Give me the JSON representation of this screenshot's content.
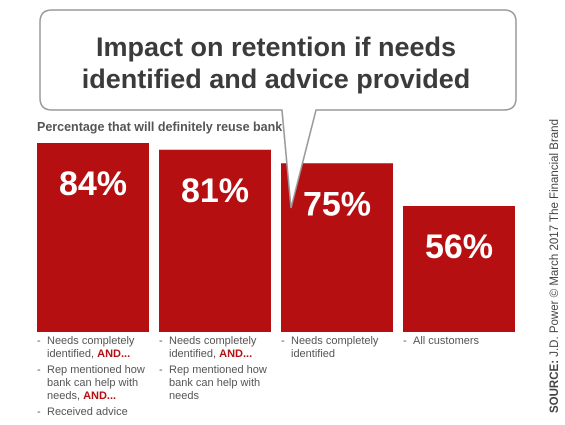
{
  "title": {
    "line1": "Impact on retention if needs",
    "line2": "identified and advice provided"
  },
  "subtitle": "Percentage that will definitely reuse bank",
  "chart_data": {
    "type": "bar",
    "categories": [
      "Needs completely identified, AND... / Rep mentioned how bank can help with needs, AND... / Received advice",
      "Needs completely identified, AND... / Rep mentioned how bank can help with needs",
      "Needs completely identified",
      "All customers"
    ],
    "values": [
      84,
      81,
      75,
      56
    ],
    "value_labels": [
      "84%",
      "81%",
      "75%",
      "56%"
    ],
    "ylim": [
      0,
      100
    ],
    "grid": false,
    "bar_color": "#b50f12"
  },
  "category_notes": [
    {
      "items": [
        {
          "text": "Needs completely identified, ",
          "emph": "AND..."
        },
        {
          "text": "Rep mentioned how bank can help with needs, ",
          "emph": "AND..."
        },
        {
          "text": "Received advice",
          "emph": ""
        }
      ]
    },
    {
      "items": [
        {
          "text": "Needs completely identified, ",
          "emph": "AND..."
        },
        {
          "text": "Rep mentioned how bank can help with needs",
          "emph": ""
        }
      ]
    },
    {
      "items": [
        {
          "text": "Needs completely identified",
          "emph": ""
        }
      ]
    },
    {
      "items": [
        {
          "text": "All customers",
          "emph": ""
        }
      ]
    }
  ],
  "source": {
    "label": "SOURCE:",
    "text": " J.D. Power © March 2017 The Financial Brand"
  }
}
